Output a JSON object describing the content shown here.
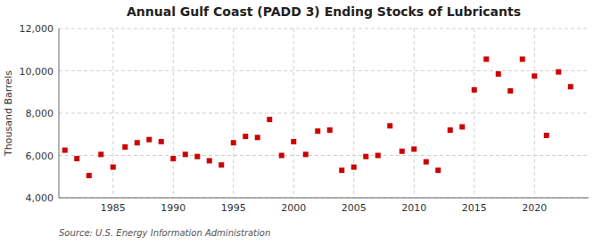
{
  "chart_data": {
    "type": "scatter",
    "title": "Annual Gulf Coast (PADD 3) Ending Stocks of Lubricants",
    "ylabel": "Thousand Barrels",
    "annotation": "Source: U.S. Energy Information Administration",
    "color": "#cc0000",
    "marker": "square",
    "grid": true,
    "x": [
      1981,
      1982,
      1983,
      1984,
      1985,
      1986,
      1987,
      1988,
      1989,
      1990,
      1991,
      1992,
      1993,
      1994,
      1995,
      1996,
      1997,
      1998,
      1999,
      2000,
      2001,
      2002,
      2003,
      2004,
      2005,
      2006,
      2007,
      2008,
      2009,
      2010,
      2011,
      2012,
      2013,
      2014,
      2015,
      2016,
      2017,
      2018,
      2019,
      2020,
      2021,
      2022,
      2023
    ],
    "values": [
      6250,
      5850,
      5050,
      6050,
      5450,
      6400,
      6600,
      6750,
      6650,
      5850,
      6050,
      5950,
      5750,
      5550,
      6600,
      6900,
      6850,
      7700,
      6000,
      6650,
      6050,
      7150,
      7200,
      5300,
      5450,
      5950,
      6000,
      7400,
      6200,
      6300,
      5700,
      5300,
      7200,
      7350,
      9100,
      10550,
      9850,
      9050,
      10550,
      9750,
      6950,
      9950,
      9250
    ],
    "xlim": [
      1980.5,
      2024.5
    ],
    "xticks": [
      1985,
      1990,
      1995,
      2000,
      2005,
      2010,
      2015,
      2020
    ],
    "ylim": [
      4000,
      12000
    ],
    "yticks": [
      {
        "value": 4000,
        "label": "4,000"
      },
      {
        "value": 6000,
        "label": "6,000"
      },
      {
        "value": 8000,
        "label": "8,000"
      },
      {
        "value": 10000,
        "label": "10,000"
      },
      {
        "value": 12000,
        "label": "12,000"
      }
    ]
  }
}
